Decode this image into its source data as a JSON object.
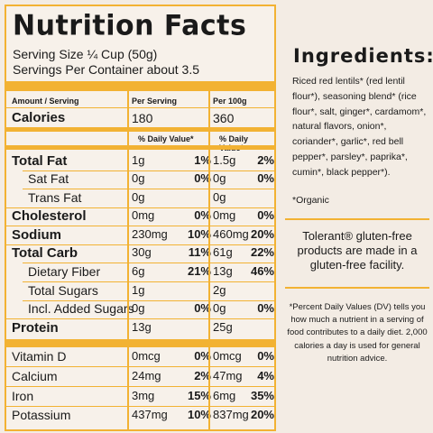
{
  "facts": {
    "title": "Nutrition Facts",
    "serving_size": "Serving Size ¼ Cup (50g)",
    "servings_per_container": "Servings Per Container about 3.5",
    "header": {
      "amount": "Amount / Serving",
      "per_serving": "Per Serving",
      "per_100g": "Per 100g"
    },
    "calories": {
      "label": "Calories",
      "per_serving": "180",
      "per_100g": "360"
    },
    "dv_header": "% Daily Value*",
    "rows": [
      {
        "label": "Total Fat",
        "v1": "1g",
        "p1": "1%",
        "v2": "1.5g",
        "p2": "2%"
      },
      {
        "label": "Sat Fat",
        "v1": "0g",
        "p1": "0%",
        "v2": "0g",
        "p2": "0%"
      },
      {
        "label": "Trans Fat",
        "v1": "0g",
        "p1": "",
        "v2": "0g",
        "p2": ""
      },
      {
        "label": "Cholesterol",
        "v1": "0mg",
        "p1": "0%",
        "v2": "0mg",
        "p2": "0%"
      },
      {
        "label": "Sodium",
        "v1": "230mg",
        "p1": "10%",
        "v2": "460mg",
        "p2": "20%"
      },
      {
        "label": "Total Carb",
        "v1": "30g",
        "p1": "11%",
        "v2": "61g",
        "p2": "22%"
      },
      {
        "label": "Dietary Fiber",
        "v1": "6g",
        "p1": "21%",
        "v2": "13g",
        "p2": "46%"
      },
      {
        "label": "Total Sugars",
        "v1": "1g",
        "p1": "",
        "v2": "2g",
        "p2": ""
      },
      {
        "label": "Incl. Added Sugars",
        "v1": "0g",
        "p1": "0%",
        "v2": "0g",
        "p2": "0%"
      },
      {
        "label": "Protein",
        "v1": "13g",
        "p1": "",
        "v2": "25g",
        "p2": ""
      },
      {
        "label": "Vitamin D",
        "v1": "0mcg",
        "p1": "0%",
        "v2": "0mcg",
        "p2": "0%"
      },
      {
        "label": "Calcium",
        "v1": "24mg",
        "p1": "2%",
        "v2": "47mg",
        "p2": "4%"
      },
      {
        "label": "Iron",
        "v1": "3mg",
        "p1": "15%",
        "v2": "6mg",
        "p2": "35%"
      },
      {
        "label": "Potassium",
        "v1": "437mg",
        "p1": "10%",
        "v2": "837mg",
        "p2": "20%"
      }
    ]
  },
  "ingredients": {
    "title": "Ingredients:",
    "text": "Riced red lentils* (red lentil flour*), seasoning blend* (rice flour*, salt, ginger*, cardamom*, natural flavors, onion*, coriander*, garlic*, red bell pepper*, parsley*, paprika*, cumin*, black pepper*).",
    "organic_note": "*Organic",
    "gluten_free": "Tolerant® gluten-free products are made in a gluten-free facility.",
    "dv_note": "*Percent Daily Values (DV) tells you how much a nutrient in a serving of food contributes to a daily diet. 2,000 calories a day is used for general nutrition advice."
  },
  "colors": {
    "accent": "#f2b233",
    "background": "#f3ece4"
  }
}
